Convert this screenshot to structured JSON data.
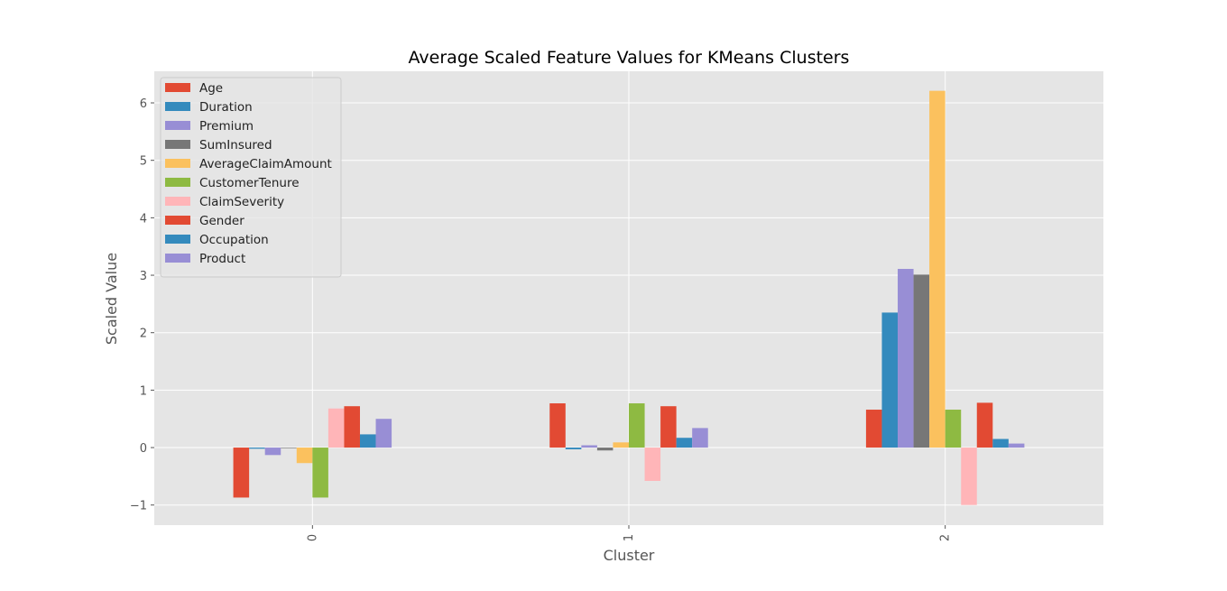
{
  "chart_data": {
    "type": "bar",
    "title": "Average Scaled Feature Values for KMeans Clusters",
    "xlabel": "Cluster",
    "ylabel": "Scaled Value",
    "categories": [
      "0",
      "1",
      "2"
    ],
    "ylim": [
      -1.35,
      6.55
    ],
    "yticks": [
      -1,
      0,
      1,
      2,
      3,
      4,
      5,
      6
    ],
    "ytick_labels": [
      "−1",
      "0",
      "1",
      "2",
      "3",
      "4",
      "5",
      "6"
    ],
    "grid": true,
    "legend_position": "top-left",
    "series": [
      {
        "name": "Age",
        "color": "#E24A33",
        "values": [
          -0.87,
          0.77,
          0.66
        ]
      },
      {
        "name": "Duration",
        "color": "#348ABD",
        "values": [
          -0.02,
          -0.03,
          2.35
        ]
      },
      {
        "name": "Premium",
        "color": "#988ED5",
        "values": [
          -0.13,
          0.04,
          3.11
        ]
      },
      {
        "name": "SumInsured",
        "color": "#777777",
        "values": [
          -0.01,
          -0.05,
          3.01
        ]
      },
      {
        "name": "AverageClaimAmount",
        "color": "#FBC15E",
        "values": [
          -0.27,
          0.09,
          6.21
        ]
      },
      {
        "name": "CustomerTenure",
        "color": "#8EBA42",
        "values": [
          -0.87,
          0.77,
          0.66
        ]
      },
      {
        "name": "ClaimSeverity",
        "color": "#FFB5B8",
        "values": [
          0.68,
          -0.58,
          -1.0
        ]
      },
      {
        "name": "Gender",
        "color": "#E24A33",
        "values": [
          0.72,
          0.72,
          0.78
        ]
      },
      {
        "name": "Occupation",
        "color": "#348ABD",
        "values": [
          0.23,
          0.17,
          0.15
        ]
      },
      {
        "name": "Product",
        "color": "#988ED5",
        "values": [
          0.5,
          0.34,
          0.07
        ]
      }
    ]
  }
}
